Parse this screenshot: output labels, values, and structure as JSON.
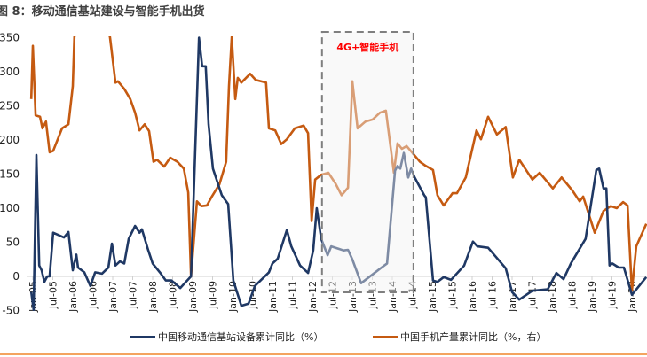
{
  "title": "图 8：移动通信基站建设与智能手机出货",
  "chart_data": {
    "type": "line",
    "title": "移动通信基站建设与智能手机出货",
    "ylim": [
      -50,
      350
    ],
    "xlim": [
      2004.9,
      2020.4
    ],
    "yticks": [
      350,
      300,
      250,
      200,
      150,
      100,
      50,
      0,
      -50
    ],
    "xtick_labels": [
      "Jan-05",
      "Jul-05",
      "Jan-06",
      "Jul-06",
      "Jan-07",
      "Jul-07",
      "Jan-08",
      "Jul-08",
      "Jan-09",
      "Jul-09",
      "Jan-10",
      "Jul-10",
      "Jan-11",
      "Jul-11",
      "Jan-12",
      "Jul-12",
      "Jan-13",
      "Jul-13",
      "Jan-14",
      "Jul-14",
      "Jan-15",
      "Jul-15",
      "Jan-16",
      "Jul-16",
      "Jan-17",
      "Jul-17",
      "Jan-18",
      "Jul-18",
      "Jan-19",
      "Jul-19",
      "Jan-20",
      "Jul-20"
    ],
    "highlight": {
      "range": [
        2012.24,
        2014.53
      ],
      "label": "4G+智能手机"
    },
    "series": [
      {
        "name": "中国移动通信基站设备累计同比（%）",
        "color": "#1f3864",
        "points": [
          [
            2004.96,
            -23
          ],
          [
            2005.02,
            -49
          ],
          [
            2005.09,
            178
          ],
          [
            2005.16,
            16
          ],
          [
            2005.22,
            9
          ],
          [
            2005.29,
            -8
          ],
          [
            2005.36,
            0
          ],
          [
            2005.42,
            0
          ],
          [
            2005.51,
            64
          ],
          [
            2005.78,
            57
          ],
          [
            2005.89,
            65
          ],
          [
            2006.0,
            9
          ],
          [
            2006.09,
            32
          ],
          [
            2006.13,
            13
          ],
          [
            2006.29,
            6
          ],
          [
            2006.44,
            -14
          ],
          [
            2006.56,
            6
          ],
          [
            2006.73,
            4
          ],
          [
            2006.89,
            13
          ],
          [
            2006.98,
            48
          ],
          [
            2007.07,
            16
          ],
          [
            2007.18,
            22
          ],
          [
            2007.29,
            19
          ],
          [
            2007.4,
            55
          ],
          [
            2007.56,
            74
          ],
          [
            2007.67,
            64
          ],
          [
            2007.73,
            69
          ],
          [
            2007.89,
            38
          ],
          [
            2008.0,
            19
          ],
          [
            2008.18,
            6
          ],
          [
            2008.33,
            -6
          ],
          [
            2008.47,
            -6
          ],
          [
            2008.69,
            -17
          ],
          [
            2008.96,
            0
          ],
          [
            2009.16,
            350
          ],
          [
            2009.24,
            308
          ],
          [
            2009.33,
            308
          ],
          [
            2009.4,
            223
          ],
          [
            2009.51,
            158
          ],
          [
            2009.73,
            119
          ],
          [
            2009.89,
            106
          ],
          [
            2010.02,
            -6
          ],
          [
            2010.22,
            -43
          ],
          [
            2010.4,
            -40
          ],
          [
            2010.56,
            -14
          ],
          [
            2010.91,
            6
          ],
          [
            2011.0,
            19
          ],
          [
            2011.13,
            26
          ],
          [
            2011.36,
            68
          ],
          [
            2011.47,
            44
          ],
          [
            2011.69,
            16
          ],
          [
            2011.89,
            5
          ],
          [
            2012.02,
            38
          ],
          [
            2012.11,
            100
          ],
          [
            2012.22,
            55
          ],
          [
            2012.38,
            31
          ],
          [
            2012.47,
            44
          ],
          [
            2012.78,
            38
          ],
          [
            2012.89,
            39
          ],
          [
            2013.0,
            25
          ],
          [
            2013.22,
            -10
          ],
          [
            2013.51,
            3
          ],
          [
            2013.73,
            13
          ],
          [
            2013.87,
            19
          ],
          [
            2014.07,
            155
          ],
          [
            2014.13,
            162
          ],
          [
            2014.2,
            158
          ],
          [
            2014.29,
            181
          ],
          [
            2014.4,
            145
          ],
          [
            2014.47,
            158
          ],
          [
            2014.56,
            145
          ],
          [
            2014.8,
            119
          ],
          [
            2014.84,
            116
          ],
          [
            2015.02,
            -6
          ],
          [
            2015.13,
            -8
          ],
          [
            2015.29,
            -1
          ],
          [
            2015.47,
            -5
          ],
          [
            2015.8,
            16
          ],
          [
            2016.02,
            51
          ],
          [
            2016.13,
            44
          ],
          [
            2016.4,
            42
          ],
          [
            2016.84,
            12
          ],
          [
            2017.0,
            -23
          ],
          [
            2017.18,
            -34
          ],
          [
            2017.51,
            -21
          ],
          [
            2017.89,
            -19
          ],
          [
            2018.11,
            5
          ],
          [
            2018.29,
            -4
          ],
          [
            2018.47,
            19
          ],
          [
            2018.84,
            55
          ],
          [
            2019.11,
            156
          ],
          [
            2019.18,
            158
          ],
          [
            2019.29,
            129
          ],
          [
            2019.36,
            129
          ],
          [
            2019.44,
            16
          ],
          [
            2019.51,
            19
          ],
          [
            2019.67,
            13
          ],
          [
            2019.8,
            13
          ],
          [
            2020.0,
            -27
          ],
          [
            2020.36,
            -1
          ]
        ]
      },
      {
        "name": "中国手机产量累计同比（%，右）",
        "color": "#c55a11",
        "points": [
          [
            2004.96,
            260
          ],
          [
            2005.0,
            338
          ],
          [
            2005.07,
            236
          ],
          [
            2005.18,
            234
          ],
          [
            2005.24,
            217
          ],
          [
            2005.33,
            227
          ],
          [
            2005.42,
            182
          ],
          [
            2005.51,
            184
          ],
          [
            2005.73,
            217
          ],
          [
            2005.89,
            223
          ],
          [
            2006.0,
            279
          ],
          [
            2006.04,
            351
          ],
          [
            2006.5,
            430
          ],
          [
            2006.93,
            351
          ],
          [
            2007.07,
            284
          ],
          [
            2007.13,
            286
          ],
          [
            2007.29,
            275
          ],
          [
            2007.44,
            260
          ],
          [
            2007.56,
            240
          ],
          [
            2007.67,
            214
          ],
          [
            2007.8,
            223
          ],
          [
            2007.91,
            213
          ],
          [
            2008.02,
            168
          ],
          [
            2008.11,
            171
          ],
          [
            2008.29,
            161
          ],
          [
            2008.44,
            174
          ],
          [
            2008.62,
            168
          ],
          [
            2008.78,
            158
          ],
          [
            2008.89,
            123
          ],
          [
            2008.96,
            0
          ],
          [
            2009.11,
            110
          ],
          [
            2009.22,
            103
          ],
          [
            2009.36,
            104
          ],
          [
            2009.47,
            116
          ],
          [
            2009.67,
            135
          ],
          [
            2009.84,
            168
          ],
          [
            2009.91,
            279
          ],
          [
            2009.98,
            351
          ],
          [
            2010.07,
            260
          ],
          [
            2010.13,
            291
          ],
          [
            2010.22,
            284
          ],
          [
            2010.44,
            297
          ],
          [
            2010.58,
            288
          ],
          [
            2010.84,
            284
          ],
          [
            2010.91,
            217
          ],
          [
            2011.07,
            214
          ],
          [
            2011.22,
            194
          ],
          [
            2011.36,
            201
          ],
          [
            2011.56,
            217
          ],
          [
            2011.78,
            221
          ],
          [
            2011.89,
            210
          ],
          [
            2011.98,
            81
          ],
          [
            2012.07,
            142
          ],
          [
            2012.22,
            149
          ],
          [
            2012.4,
            152
          ],
          [
            2012.58,
            136
          ],
          [
            2012.73,
            119
          ],
          [
            2012.89,
            130
          ],
          [
            2013.0,
            286
          ],
          [
            2013.13,
            217
          ],
          [
            2013.33,
            227
          ],
          [
            2013.51,
            230
          ],
          [
            2013.69,
            240
          ],
          [
            2013.84,
            243
          ],
          [
            2014.04,
            152
          ],
          [
            2014.13,
            195
          ],
          [
            2014.24,
            187
          ],
          [
            2014.36,
            191
          ],
          [
            2014.69,
            168
          ],
          [
            2014.84,
            162
          ],
          [
            2015.02,
            156
          ],
          [
            2015.13,
            119
          ],
          [
            2015.29,
            104
          ],
          [
            2015.51,
            122
          ],
          [
            2015.62,
            122
          ],
          [
            2015.84,
            145
          ],
          [
            2016.11,
            214
          ],
          [
            2016.22,
            201
          ],
          [
            2016.4,
            234
          ],
          [
            2016.62,
            208
          ],
          [
            2016.84,
            219
          ],
          [
            2017.02,
            145
          ],
          [
            2017.18,
            171
          ],
          [
            2017.51,
            142
          ],
          [
            2017.69,
            152
          ],
          [
            2018.02,
            129
          ],
          [
            2018.24,
            145
          ],
          [
            2018.51,
            126
          ],
          [
            2018.69,
            110
          ],
          [
            2018.78,
            117
          ],
          [
            2019.07,
            64
          ],
          [
            2019.29,
            96
          ],
          [
            2019.47,
            103
          ],
          [
            2019.62,
            100
          ],
          [
            2019.78,
            109
          ],
          [
            2019.89,
            104
          ],
          [
            2020.0,
            -21
          ],
          [
            2020.11,
            44
          ],
          [
            2020.36,
            77
          ]
        ]
      }
    ]
  }
}
